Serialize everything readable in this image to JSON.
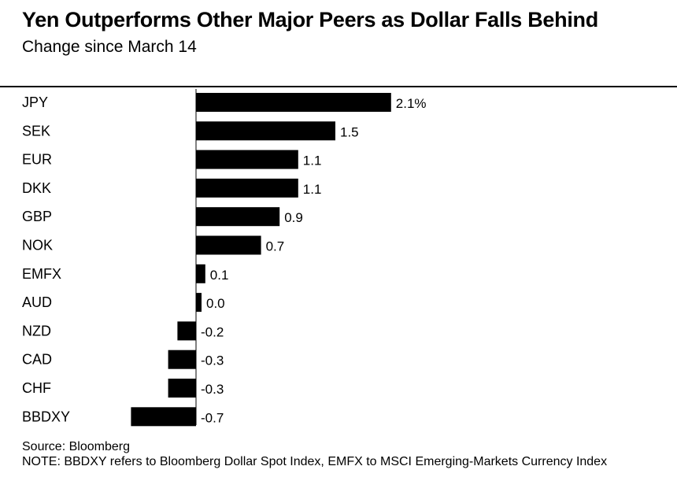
{
  "header": {
    "title": "Yen Outperforms Other Major Peers as Dollar Falls Behind",
    "subtitle": "Change since March 14"
  },
  "footer": {
    "source": "Source: Bloomberg",
    "note": "NOTE: BBDXY refers to Bloomberg Dollar Spot Index, EMFX to MSCI Emerging-Markets Currency Index"
  },
  "colors": {
    "bar": "#000000",
    "axis": "#000000"
  },
  "chart_data": {
    "type": "bar",
    "orientation": "horizontal",
    "title": "Yen Outperforms Other Major Peers as Dollar Falls Behind",
    "subtitle": "Change since March 14",
    "categories": [
      "JPY",
      "SEK",
      "EUR",
      "DKK",
      "GBP",
      "NOK",
      "EMFX",
      "AUD",
      "NZD",
      "CAD",
      "CHF",
      "BBDXY"
    ],
    "values": [
      2.1,
      1.5,
      1.1,
      1.1,
      0.9,
      0.7,
      0.1,
      0.0,
      -0.2,
      -0.3,
      -0.3,
      -0.7
    ],
    "value_labels": [
      "2.1%",
      "1.5",
      "1.1",
      "1.1",
      "0.9",
      "0.7",
      "0.1",
      "0.0",
      "-0.2",
      "-0.3",
      "-0.3",
      "-0.7"
    ],
    "xlim": [
      -0.7,
      2.1
    ],
    "grid": false,
    "legend": "none"
  }
}
